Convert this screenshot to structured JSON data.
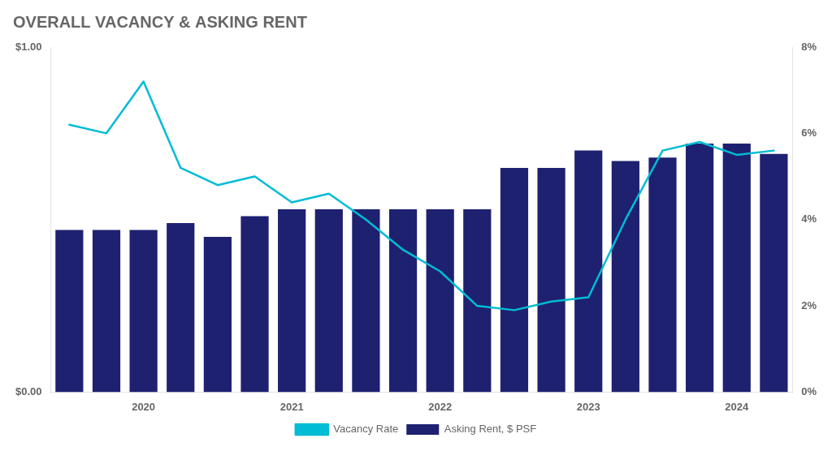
{
  "chart_data": {
    "type": "bar",
    "title": "OVERALL VACANCY & ASKING RENT",
    "categories": [
      null,
      null,
      "2020",
      null,
      null,
      null,
      "2021",
      null,
      null,
      null,
      "2022",
      null,
      null,
      null,
      "2023",
      null,
      null,
      null,
      "2024",
      null
    ],
    "series": [
      {
        "name": "Asking Rent, $ PSF",
        "type": "bar",
        "color": "#1e2170",
        "values": [
          0.47,
          0.47,
          0.47,
          0.49,
          0.45,
          0.51,
          0.53,
          0.53,
          0.53,
          0.53,
          0.53,
          0.53,
          0.65,
          0.65,
          0.7,
          0.67,
          0.68,
          0.72,
          0.72,
          0.69
        ]
      },
      {
        "name": "Vacancy Rate",
        "type": "line",
        "color": "#00bcd4",
        "axis": "y2",
        "values": [
          0.062,
          0.06,
          0.072,
          0.052,
          0.048,
          0.05,
          0.044,
          0.046,
          0.04,
          0.033,
          0.028,
          0.02,
          0.019,
          0.021,
          0.022,
          0.04,
          0.056,
          0.058,
          0.055,
          0.056
        ]
      }
    ],
    "ylim": [
      0,
      1.0
    ],
    "yticks": [
      {
        "value": 0.0,
        "label": "$0.00"
      },
      {
        "value": 1.0,
        "label": "$1.00"
      }
    ],
    "y2lim": [
      0,
      0.08
    ],
    "y2ticks": [
      {
        "value": 0.0,
        "label": "0%"
      },
      {
        "value": 0.02,
        "label": "2%"
      },
      {
        "value": 0.04,
        "label": "4%"
      },
      {
        "value": 0.06,
        "label": "6%"
      },
      {
        "value": 0.08,
        "label": "8%"
      }
    ],
    "grid": false,
    "legend": "bottom"
  }
}
